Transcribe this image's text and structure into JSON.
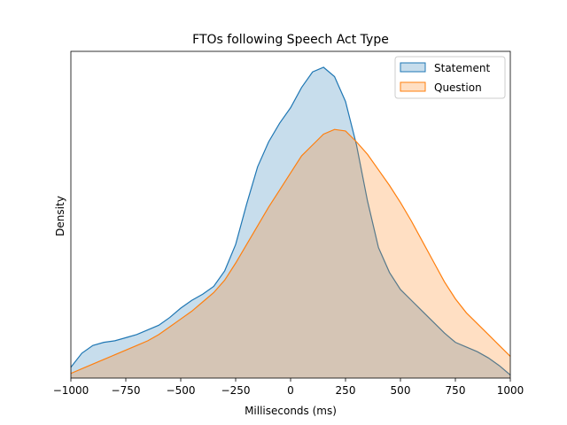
{
  "chart_data": {
    "type": "area",
    "title": "FTOs following Speech Act Type",
    "xlabel": "Milliseconds (ms)",
    "ylabel": "Density",
    "xlim": [
      -1000,
      1000
    ],
    "ylim": [
      0,
      1
    ],
    "x_ticks": [
      -1000,
      -750,
      -500,
      -250,
      0,
      250,
      500,
      750,
      1000
    ],
    "x_tick_labels": [
      "−1000",
      "−750",
      "−500",
      "−250",
      "0",
      "250",
      "500",
      "750",
      "1000"
    ],
    "y_ticks_shown": false,
    "grid": false,
    "legend_position": "top-right",
    "series": [
      {
        "name": "Statement",
        "color": "#1f77b4",
        "fill_opacity": 0.25,
        "x": [
          -1000,
          -950,
          -900,
          -850,
          -800,
          -750,
          -700,
          -650,
          -600,
          -550,
          -500,
          -450,
          -400,
          -350,
          -300,
          -250,
          -200,
          -150,
          -100,
          -50,
          0,
          50,
          100,
          150,
          200,
          250,
          300,
          350,
          400,
          450,
          500,
          550,
          600,
          650,
          700,
          750,
          800,
          850,
          900,
          950,
          1000
        ],
        "y": [
          0.035,
          0.08,
          0.105,
          0.115,
          0.12,
          0.13,
          0.14,
          0.155,
          0.17,
          0.195,
          0.225,
          0.25,
          0.27,
          0.295,
          0.345,
          0.43,
          0.56,
          0.68,
          0.76,
          0.82,
          0.87,
          0.935,
          0.985,
          1.0,
          0.97,
          0.89,
          0.75,
          0.57,
          0.42,
          0.34,
          0.285,
          0.25,
          0.215,
          0.18,
          0.145,
          0.115,
          0.1,
          0.085,
          0.065,
          0.04,
          0.01
        ]
      },
      {
        "name": "Question",
        "color": "#ff7f0e",
        "fill_opacity": 0.25,
        "x": [
          -1000,
          -950,
          -900,
          -850,
          -800,
          -750,
          -700,
          -650,
          -600,
          -550,
          -500,
          -450,
          -400,
          -350,
          -300,
          -250,
          -200,
          -150,
          -100,
          -50,
          0,
          50,
          100,
          150,
          200,
          250,
          300,
          350,
          400,
          450,
          500,
          550,
          600,
          650,
          700,
          750,
          800,
          850,
          900,
          950,
          1000
        ],
        "y": [
          0.015,
          0.03,
          0.045,
          0.06,
          0.075,
          0.09,
          0.105,
          0.12,
          0.14,
          0.165,
          0.19,
          0.215,
          0.245,
          0.275,
          0.315,
          0.37,
          0.43,
          0.49,
          0.55,
          0.605,
          0.66,
          0.715,
          0.75,
          0.785,
          0.8,
          0.795,
          0.76,
          0.72,
          0.67,
          0.62,
          0.565,
          0.505,
          0.44,
          0.375,
          0.31,
          0.255,
          0.21,
          0.175,
          0.14,
          0.105,
          0.07
        ]
      }
    ]
  }
}
